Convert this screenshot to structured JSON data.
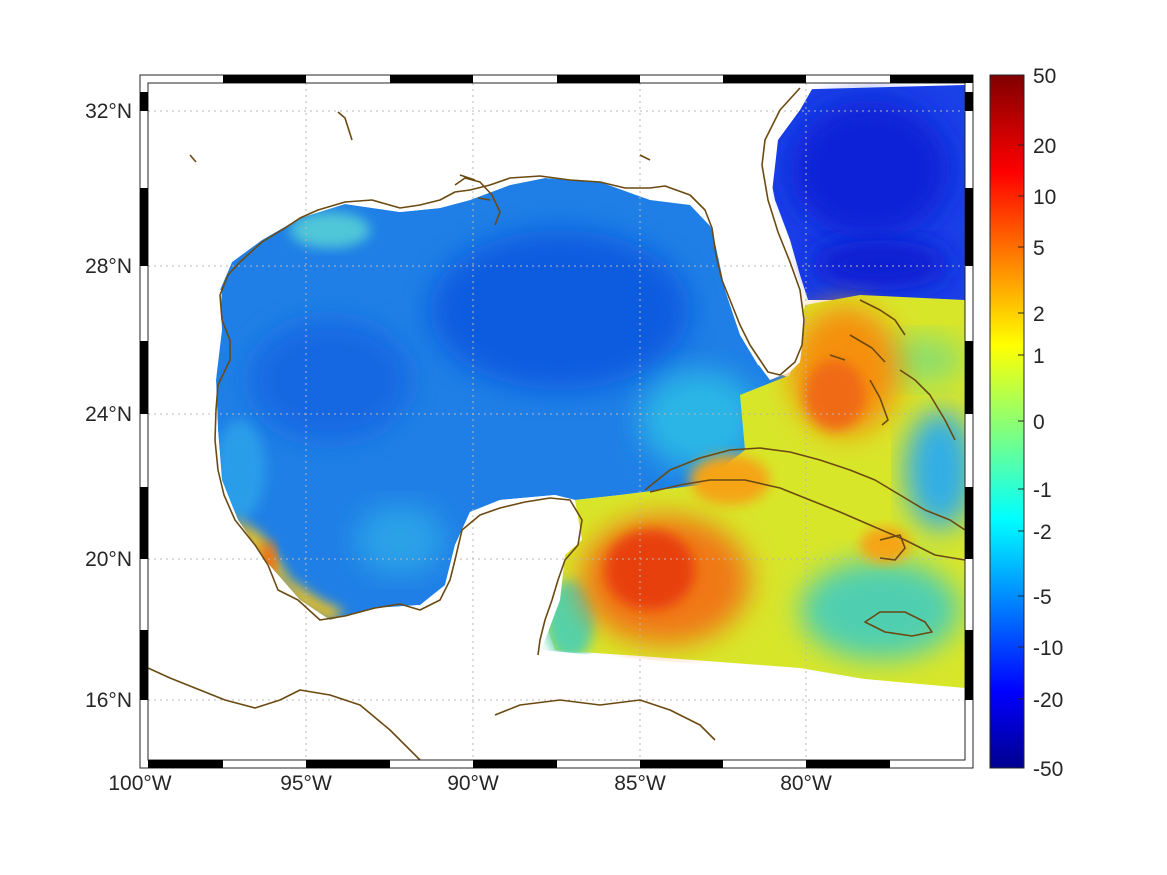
{
  "map": {
    "lon_ticks": [
      "100°W",
      "95°W",
      "90°W",
      "85°W",
      "80°W"
    ],
    "lat_ticks": [
      "32°N",
      "28°N",
      "24°N",
      "20°N",
      "16°N"
    ],
    "lon_range": [
      -100,
      -75
    ],
    "lat_range": [
      14.3,
      33
    ],
    "grid": true,
    "coastline_color": "#6b4a12",
    "frame_style": "alternating black/white border"
  },
  "colorbar": {
    "labels": [
      "50",
      "20",
      "10",
      "5",
      "2",
      "1",
      "0",
      "-1",
      "-2",
      "-5",
      "-10",
      "-20",
      "-50"
    ],
    "colormap": "jet",
    "placement": "right"
  }
}
